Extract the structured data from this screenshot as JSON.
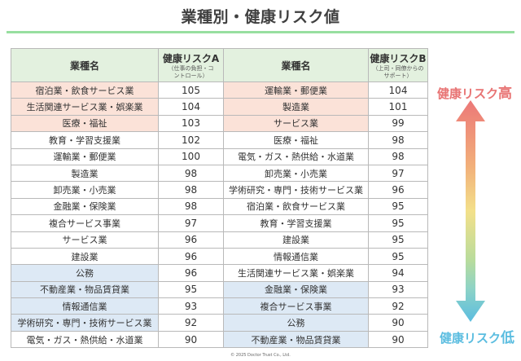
{
  "header": {
    "title": "業種別・健康リスク値"
  },
  "table": {
    "columns": {
      "industry_a": "業種名",
      "risk_a": "健康リスクA",
      "risk_a_sub": "（仕事の負担・コントロール）",
      "industry_b": "業種名",
      "risk_b": "健康リスクB",
      "risk_b_sub": "（上司・同僚からのサポート）"
    },
    "rows": [
      {
        "a_name": "宿泊業・飲食サービス業",
        "a_val": "105",
        "a_tier": "high",
        "b_name": "運輸業・郵便業",
        "b_val": "104",
        "b_tier": "high"
      },
      {
        "a_name": "生活関連サービス業・娯楽業",
        "a_val": "104",
        "a_tier": "high",
        "b_name": "製造業",
        "b_val": "101",
        "b_tier": "high"
      },
      {
        "a_name": "医療・福祉",
        "a_val": "103",
        "a_tier": "high",
        "b_name": "サービス業",
        "b_val": "99",
        "b_tier": "high"
      },
      {
        "a_name": "教育・学習支援業",
        "a_val": "102",
        "a_tier": "mid",
        "b_name": "医療・福祉",
        "b_val": "98",
        "b_tier": "mid"
      },
      {
        "a_name": "運輸業・郵便業",
        "a_val": "100",
        "a_tier": "mid",
        "b_name": "電気・ガス・熱供給・水道業",
        "b_val": "98",
        "b_tier": "mid"
      },
      {
        "a_name": "製造業",
        "a_val": "98",
        "a_tier": "mid",
        "b_name": "卸売業・小売業",
        "b_val": "97",
        "b_tier": "mid"
      },
      {
        "a_name": "卸売業・小売業",
        "a_val": "98",
        "a_tier": "mid",
        "b_name": "学術研究・専門・技術サービス業",
        "b_val": "96",
        "b_tier": "mid"
      },
      {
        "a_name": "金融業・保険業",
        "a_val": "98",
        "a_tier": "mid",
        "b_name": "宿泊業・飲食サービス業",
        "b_val": "95",
        "b_tier": "mid"
      },
      {
        "a_name": "複合サービス事業",
        "a_val": "97",
        "a_tier": "mid",
        "b_name": "教育・学習支援業",
        "b_val": "95",
        "b_tier": "mid"
      },
      {
        "a_name": "サービス業",
        "a_val": "96",
        "a_tier": "mid",
        "b_name": "建設業",
        "b_val": "95",
        "b_tier": "mid"
      },
      {
        "a_name": "建設業",
        "a_val": "96",
        "a_tier": "mid",
        "b_name": "情報通信業",
        "b_val": "95",
        "b_tier": "mid"
      },
      {
        "a_name": "公務",
        "a_val": "96",
        "a_tier": "low",
        "b_name": "生活関連サービス業・娯楽業",
        "b_val": "94",
        "b_tier": "mid"
      },
      {
        "a_name": "不動産業・物品賃貸業",
        "a_val": "95",
        "a_tier": "low",
        "b_name": "金融業・保険業",
        "b_val": "93",
        "b_tier": "low"
      },
      {
        "a_name": "情報通信業",
        "a_val": "93",
        "a_tier": "low",
        "b_name": "複合サービス事業",
        "b_val": "92",
        "b_tier": "low"
      },
      {
        "a_name": "学術研究・専門・技術サービス業",
        "a_val": "92",
        "a_tier": "low",
        "b_name": "公務",
        "b_val": "90",
        "b_tier": "low"
      },
      {
        "a_name": "電気・ガス・熱供給・水道業",
        "a_val": "90",
        "a_tier": "mid",
        "b_name": "不動産業・物品賃貸業",
        "b_val": "90",
        "b_tier": "low"
      }
    ]
  },
  "legend": {
    "high_prefix": "健康リスク",
    "high_suffix": "高",
    "low_prefix": "健康リスク",
    "low_suffix": "低",
    "colors": {
      "high": "#e87474",
      "low": "#5bbde0",
      "high_row": "#fbe2d8",
      "low_row": "#dde9f5",
      "header": "#e3f1df",
      "title_rule": "#97dfa0"
    }
  },
  "footer": {
    "copyright": "© 2025 Doctor Trust Co., Ltd."
  }
}
